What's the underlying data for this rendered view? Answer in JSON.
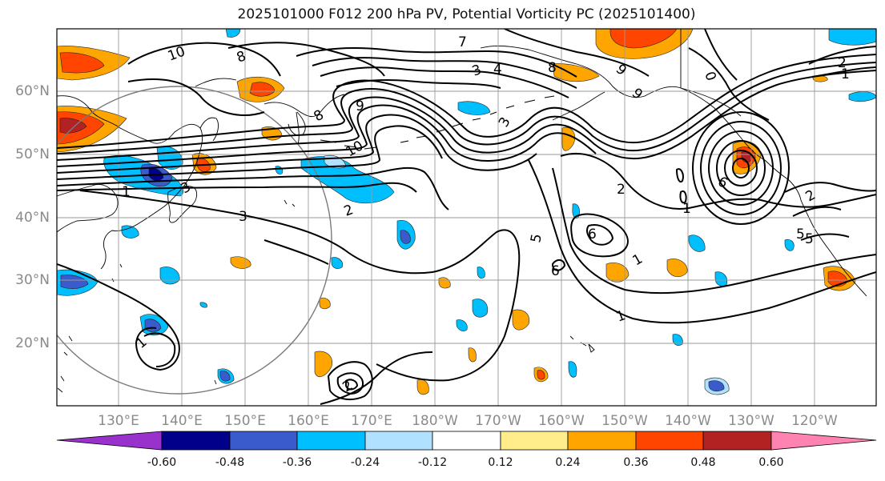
{
  "title": "2025101000 F012 200 hPa PV, Potential Vorticity PC (2025101400)",
  "lat_labels": [
    "60°N",
    "50°N",
    "40°N",
    "30°N",
    "20°N"
  ],
  "lon_labels": [
    "130°E",
    "140°E",
    "150°E",
    "160°E",
    "170°E",
    "180°W",
    "170°W",
    "160°W",
    "150°W",
    "140°W",
    "130°W",
    "120°W"
  ],
  "colorbar": {
    "colors": [
      "#9932cc",
      "#00008b",
      "#3a5bcc",
      "#00bfff",
      "#b0e2ff",
      "#ffffff",
      "#ffec8b",
      "#ffa500",
      "#ff4500",
      "#b22222",
      "#ff83b0"
    ],
    "tick_labels": [
      "-0.60",
      "-0.48",
      "-0.36",
      "-0.24",
      "-0.12",
      "0.12",
      "0.24",
      "0.36",
      "0.48",
      "0.60"
    ]
  },
  "contour_labels": [
    "10",
    "8",
    "7",
    "3",
    "4",
    "8",
    "9",
    "9",
    "0",
    "2",
    "1",
    "8",
    "9",
    "3",
    "10",
    "2",
    "3",
    "2",
    "1",
    "1",
    "6",
    "3",
    "5",
    "5",
    "6",
    "5",
    "6",
    "1",
    "1",
    "1",
    "2",
    "2"
  ]
}
